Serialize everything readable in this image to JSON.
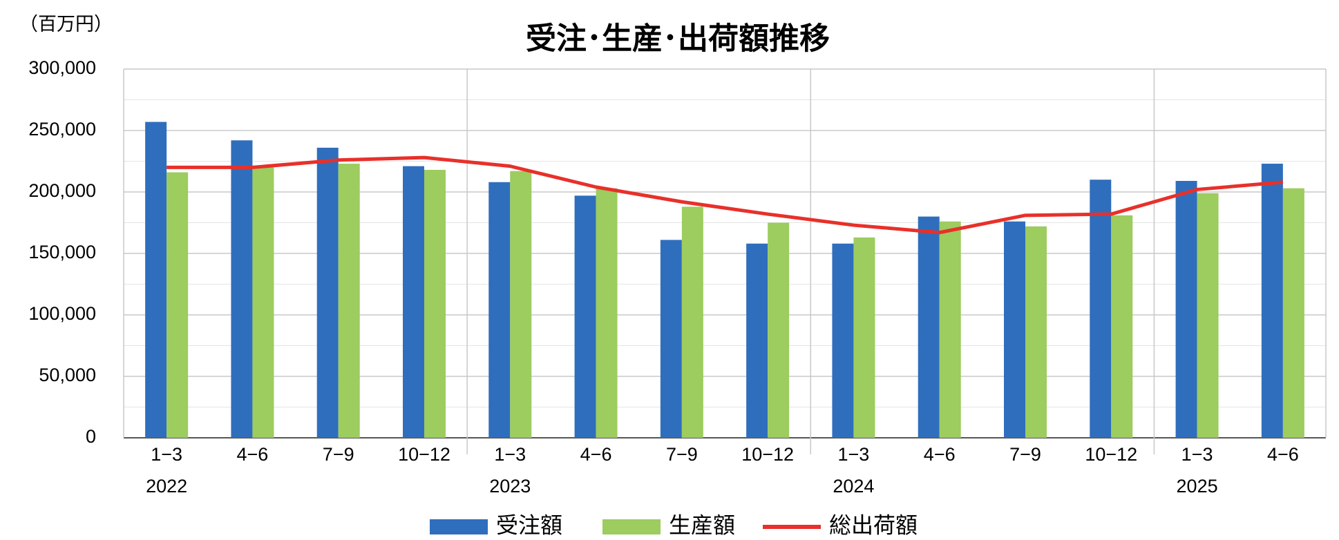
{
  "chart_data": {
    "type": "bar_line",
    "title": "受注･生産･出荷額推移",
    "unit_label": "（百万円）",
    "categories": [
      "1−3",
      "4−6",
      "7−9",
      "10−12",
      "1−3",
      "4−6",
      "7−9",
      "10−12",
      "1−3",
      "4−6",
      "7−9",
      "10−12",
      "1−3",
      "4−6"
    ],
    "years": [
      "2022",
      null,
      null,
      null,
      "2023",
      null,
      null,
      null,
      "2024",
      null,
      null,
      null,
      "2025",
      null
    ],
    "series": [
      {
        "name": "受注額",
        "kind": "bar",
        "color": "#2f6ebd",
        "values": [
          257000,
          242000,
          236000,
          221000,
          208000,
          197000,
          161000,
          158000,
          158000,
          180000,
          176000,
          210000,
          209000,
          223000
        ]
      },
      {
        "name": "生産額",
        "kind": "bar",
        "color": "#9dcc5f",
        "values": [
          216000,
          220000,
          223000,
          218000,
          217000,
          203000,
          188000,
          175000,
          163000,
          176000,
          172000,
          181000,
          199000,
          203000
        ]
      },
      {
        "name": "総出荷額",
        "kind": "line",
        "color": "#e8302a",
        "values": [
          220000,
          220000,
          226000,
          228000,
          221000,
          204000,
          192000,
          182000,
          173000,
          167000,
          181000,
          182000,
          202000,
          208000
        ]
      }
    ],
    "ylim": [
      0,
      300000
    ],
    "yticks": [
      0,
      {
        "value": 50000,
        "label": "50,000"
      },
      {
        "value": 100000,
        "label": "100,000"
      },
      {
        "value": 150000,
        "label": "150,000"
      },
      {
        "value": 200000,
        "label": "200,000"
      },
      {
        "value": 250000,
        "label": "250,000"
      },
      {
        "value": 300000,
        "label": "300,000"
      }
    ],
    "yminorticks": [
      25000,
      75000,
      125000,
      175000,
      225000,
      275000
    ],
    "grid": true
  }
}
